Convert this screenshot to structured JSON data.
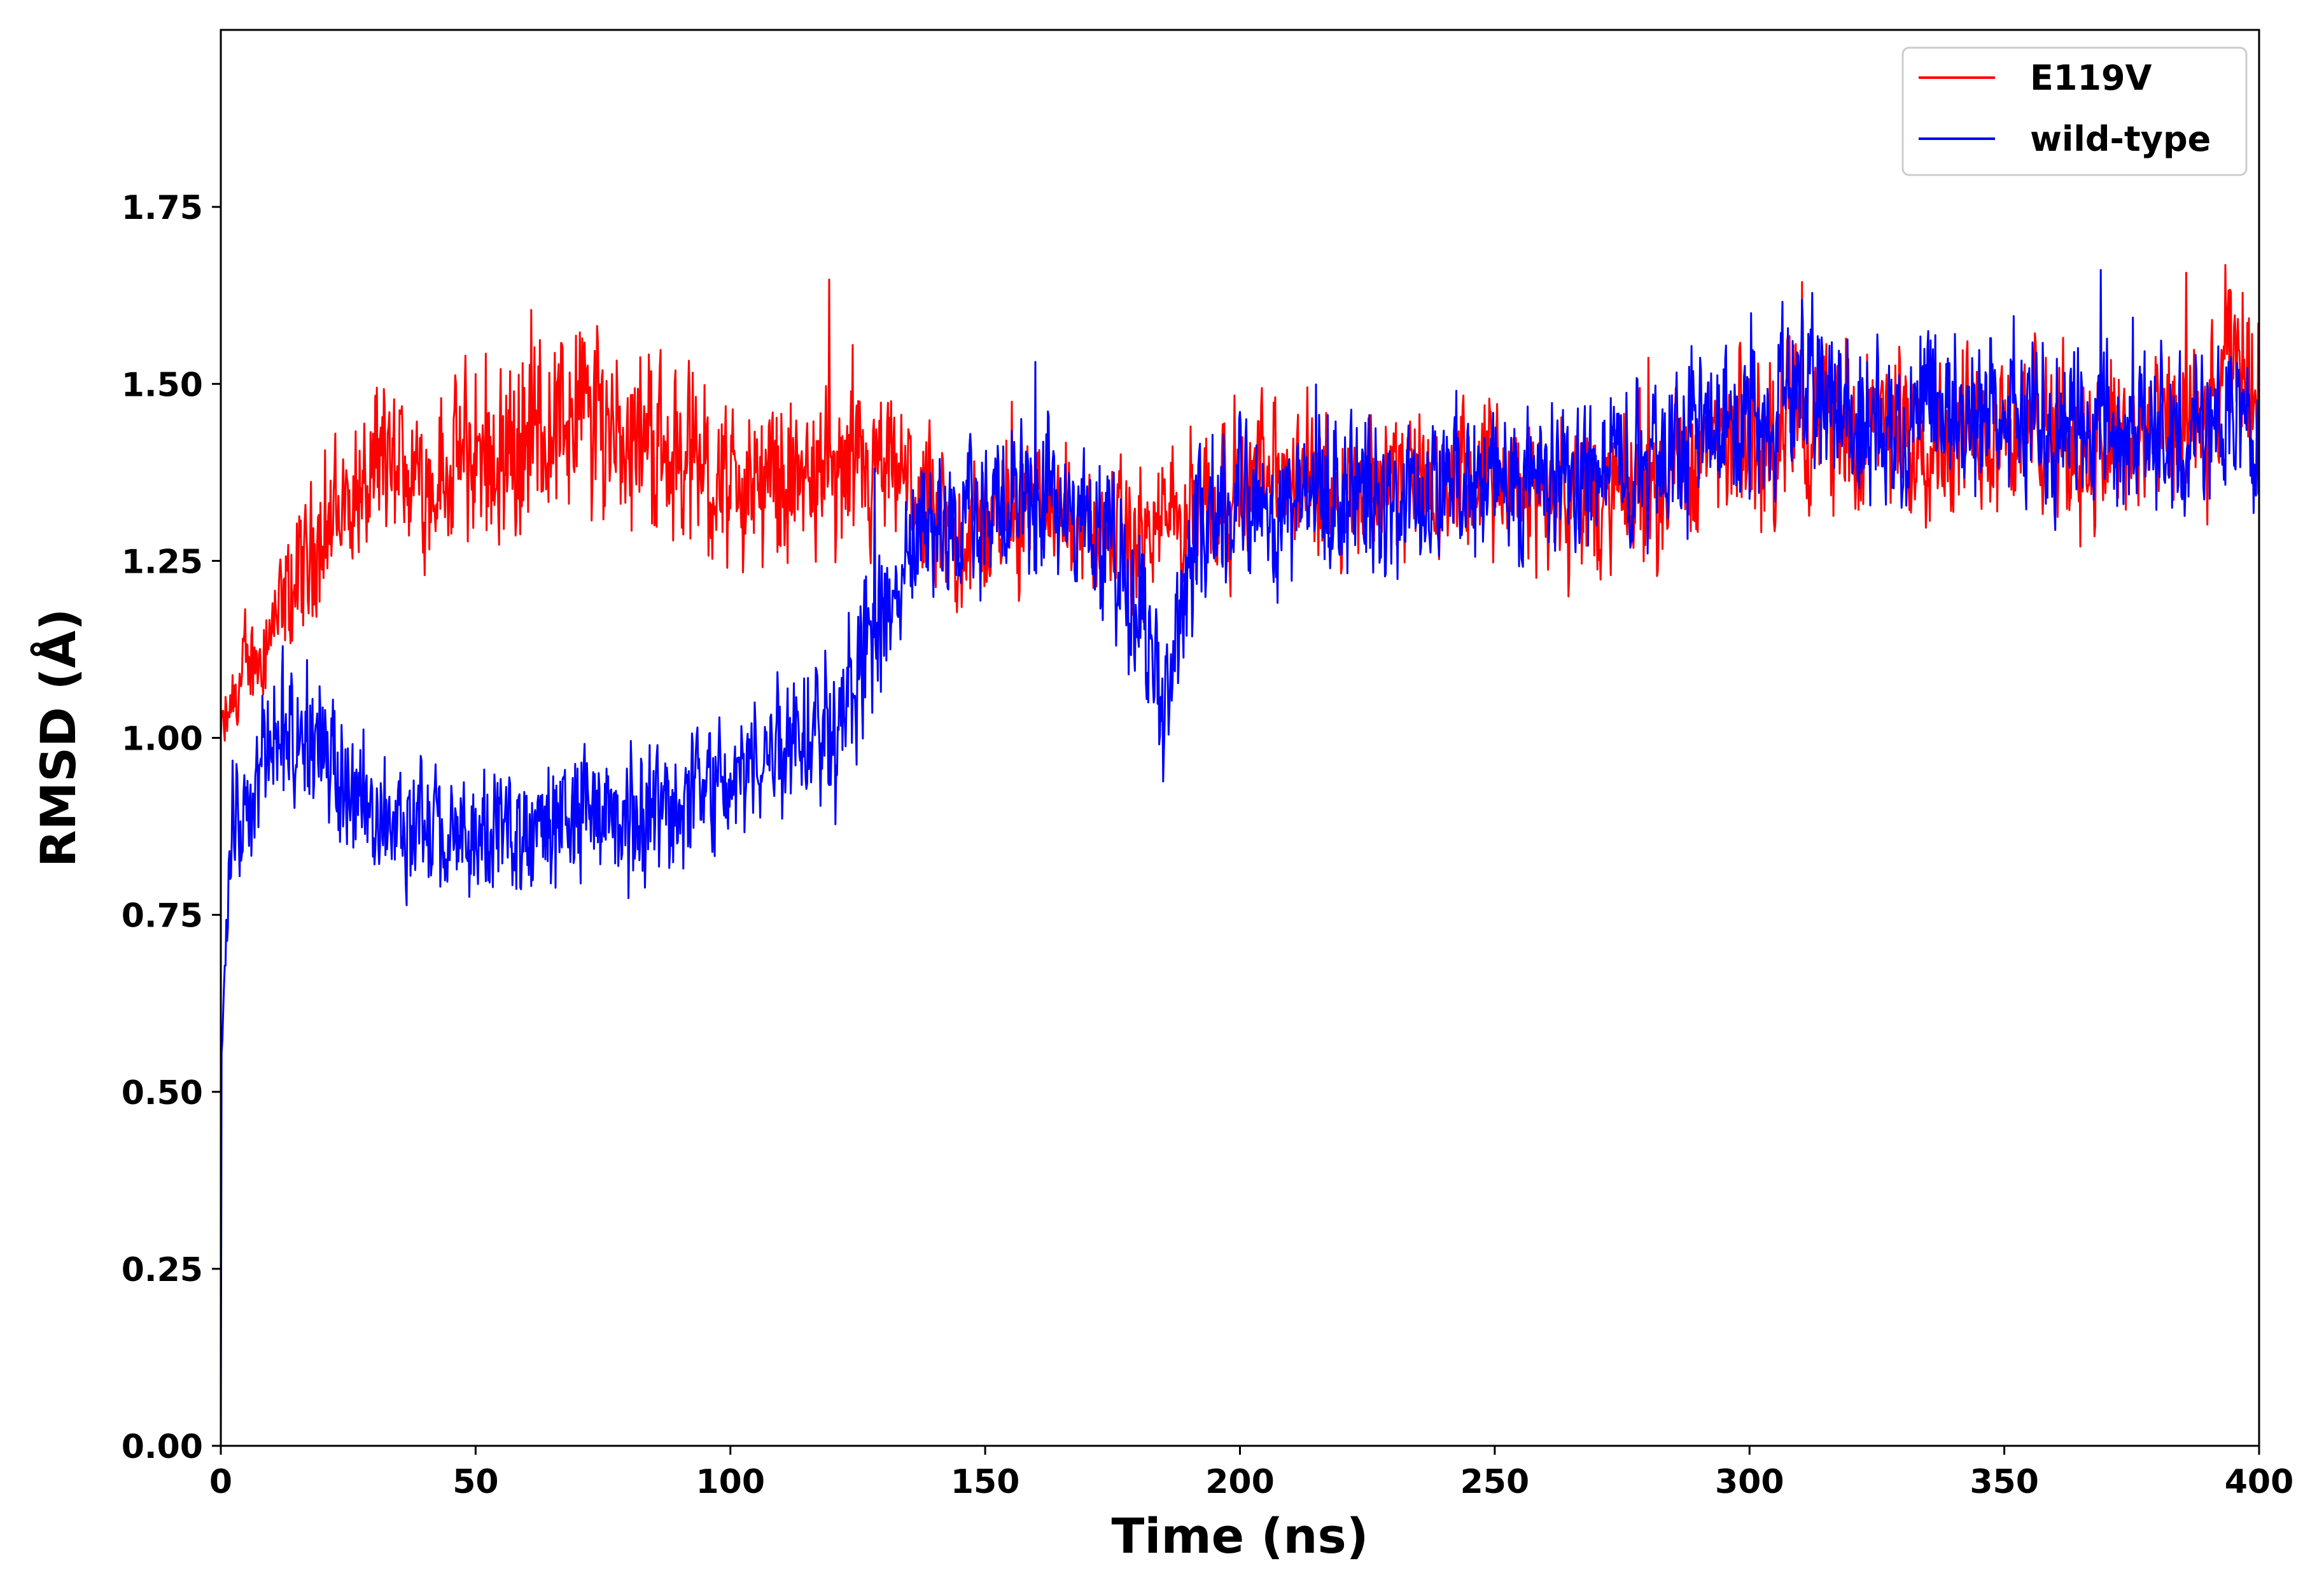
{
  "chart_data": {
    "type": "line",
    "title": "",
    "xlabel": "Time (ns)",
    "ylabel": "RMSD (Å)",
    "xlim": [
      0,
      400
    ],
    "ylim": [
      0,
      2.0
    ],
    "xticks": [
      0,
      50,
      100,
      150,
      200,
      250,
      300,
      350,
      400
    ],
    "xtick_labels": [
      "0",
      "50",
      "100",
      "150",
      "200",
      "250",
      "300",
      "350",
      "400"
    ],
    "yticks": [
      0.0,
      0.25,
      0.5,
      0.75,
      1.0,
      1.25,
      1.5,
      1.75
    ],
    "ytick_labels": [
      "0.00",
      "0.25",
      "0.50",
      "0.75",
      "1.00",
      "1.25",
      "1.50",
      "1.75"
    ],
    "grid": false,
    "legend_position": "top-right",
    "series": [
      {
        "name": "E119V",
        "color": "#ff0000",
        "x": [
          0,
          5,
          10,
          15,
          20,
          25,
          30,
          35,
          40,
          45,
          50,
          55,
          60,
          65,
          70,
          75,
          80,
          85,
          90,
          95,
          100,
          105,
          110,
          115,
          120,
          125,
          130,
          135,
          140,
          145,
          150,
          155,
          160,
          165,
          170,
          175,
          180,
          185,
          190,
          195,
          200,
          210,
          220,
          230,
          240,
          250,
          260,
          270,
          280,
          290,
          300,
          310,
          320,
          330,
          340,
          350,
          360,
          370,
          380,
          390,
          395,
          400
        ],
        "mean": [
          1.0,
          1.1,
          1.15,
          1.22,
          1.3,
          1.33,
          1.36,
          1.37,
          1.37,
          1.38,
          1.4,
          1.4,
          1.42,
          1.45,
          1.46,
          1.45,
          1.44,
          1.42,
          1.4,
          1.38,
          1.35,
          1.36,
          1.37,
          1.36,
          1.36,
          1.35,
          1.36,
          1.36,
          1.3,
          1.28,
          1.3,
          1.33,
          1.33,
          1.32,
          1.3,
          1.28,
          1.27,
          1.3,
          1.33,
          1.35,
          1.36,
          1.37,
          1.36,
          1.37,
          1.35,
          1.36,
          1.35,
          1.33,
          1.36,
          1.4,
          1.42,
          1.45,
          1.44,
          1.43,
          1.43,
          1.45,
          1.42,
          1.42,
          1.42,
          1.43,
          1.55,
          1.5
        ],
        "spread": [
          0.05,
          0.08,
          0.09,
          0.11,
          0.12,
          0.12,
          0.13,
          0.13,
          0.13,
          0.14,
          0.14,
          0.15,
          0.16,
          0.16,
          0.16,
          0.16,
          0.16,
          0.15,
          0.14,
          0.14,
          0.13,
          0.13,
          0.13,
          0.13,
          0.13,
          0.13,
          0.12,
          0.12,
          0.12,
          0.11,
          0.11,
          0.11,
          0.11,
          0.11,
          0.11,
          0.11,
          0.11,
          0.11,
          0.12,
          0.12,
          0.12,
          0.12,
          0.12,
          0.12,
          0.12,
          0.12,
          0.12,
          0.12,
          0.13,
          0.13,
          0.14,
          0.14,
          0.13,
          0.13,
          0.13,
          0.13,
          0.13,
          0.13,
          0.13,
          0.13,
          0.14,
          0.14
        ]
      },
      {
        "name": "wild-type",
        "color": "#0000ff",
        "x": [
          0,
          2,
          5,
          10,
          15,
          20,
          25,
          30,
          35,
          40,
          45,
          50,
          55,
          60,
          65,
          70,
          75,
          80,
          85,
          90,
          95,
          100,
          105,
          110,
          115,
          120,
          125,
          130,
          135,
          140,
          145,
          150,
          155,
          160,
          165,
          170,
          175,
          180,
          185,
          190,
          195,
          200,
          210,
          220,
          230,
          240,
          250,
          260,
          270,
          280,
          290,
          300,
          310,
          320,
          330,
          340,
          350,
          360,
          370,
          380,
          390,
          400
        ],
        "mean": [
          0.55,
          0.85,
          0.92,
          0.98,
          1.0,
          0.98,
          0.93,
          0.9,
          0.88,
          0.87,
          0.85,
          0.86,
          0.86,
          0.86,
          0.88,
          0.9,
          0.88,
          0.88,
          0.89,
          0.92,
          0.93,
          0.94,
          0.96,
          1.0,
          1.02,
          1.04,
          1.08,
          1.15,
          1.25,
          1.3,
          1.3,
          1.32,
          1.33,
          1.34,
          1.32,
          1.3,
          1.25,
          1.2,
          1.05,
          1.25,
          1.33,
          1.33,
          1.34,
          1.35,
          1.33,
          1.35,
          1.36,
          1.37,
          1.38,
          1.4,
          1.44,
          1.47,
          1.5,
          1.46,
          1.45,
          1.45,
          1.47,
          1.44,
          1.44,
          1.44,
          1.43,
          1.45
        ],
        "spread": [
          0.05,
          0.1,
          0.1,
          0.11,
          0.11,
          0.11,
          0.11,
          0.1,
          0.1,
          0.1,
          0.1,
          0.1,
          0.1,
          0.1,
          0.11,
          0.11,
          0.11,
          0.11,
          0.11,
          0.11,
          0.11,
          0.11,
          0.12,
          0.12,
          0.12,
          0.13,
          0.14,
          0.14,
          0.13,
          0.12,
          0.12,
          0.12,
          0.12,
          0.12,
          0.12,
          0.12,
          0.13,
          0.13,
          0.14,
          0.13,
          0.13,
          0.12,
          0.12,
          0.12,
          0.12,
          0.12,
          0.12,
          0.12,
          0.12,
          0.13,
          0.13,
          0.14,
          0.14,
          0.13,
          0.13,
          0.13,
          0.13,
          0.13,
          0.13,
          0.13,
          0.13,
          0.13
        ]
      }
    ]
  }
}
